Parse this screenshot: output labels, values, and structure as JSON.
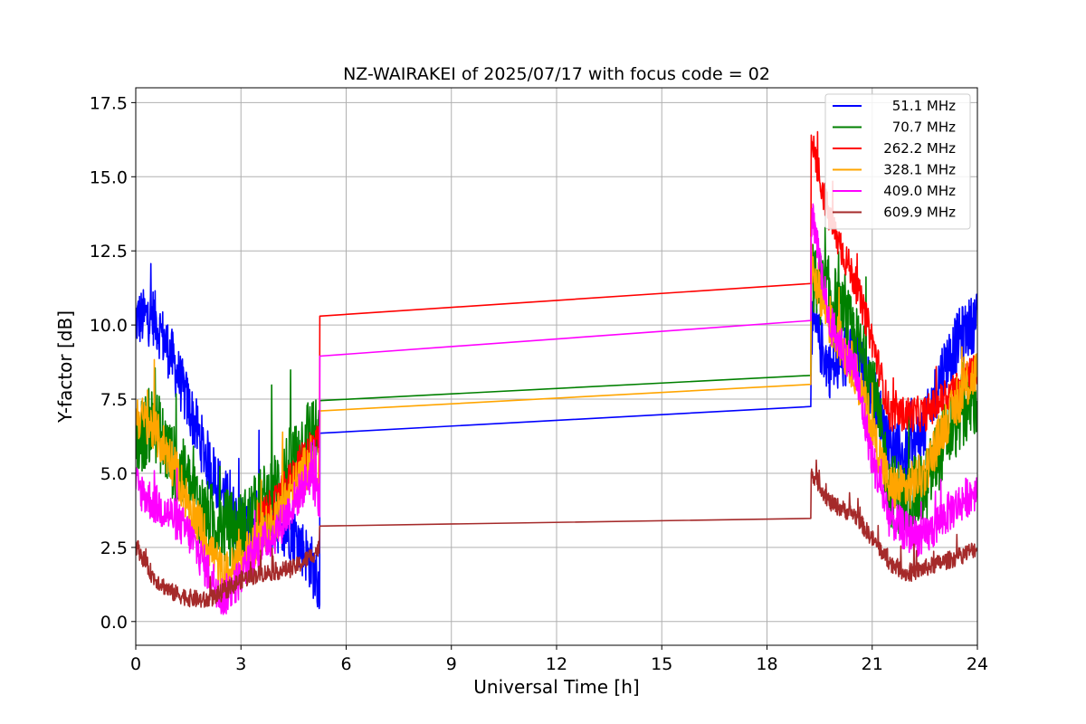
{
  "chart_data": {
    "type": "line",
    "title": "NZ-WAIRAKEI of 2025/07/17 with focus code = 02",
    "xlabel": "Universal Time [h]",
    "ylabel": "Y-factor [dB]",
    "xlim": [
      0,
      24
    ],
    "ylim": [
      -0.8,
      18.0
    ],
    "xticks": [
      0,
      3,
      6,
      9,
      12,
      15,
      18,
      21,
      24
    ],
    "xtick_labels": [
      "0",
      "3",
      "6",
      "9",
      "12",
      "15",
      "18",
      "21",
      "24"
    ],
    "yticks": [
      0.0,
      2.5,
      5.0,
      7.5,
      10.0,
      12.5,
      15.0,
      17.5
    ],
    "ytick_labels": [
      "0.0",
      "2.5",
      "5.0",
      "7.5",
      "10.0",
      "12.5",
      "15.0",
      "17.5"
    ],
    "grid": true,
    "legend_position": "top-right",
    "gap": {
      "start": 5.25,
      "end": 19.25
    },
    "series": [
      {
        "name": "51.1 MHz",
        "color": "#0000ff",
        "amplitude": 1.0,
        "gap_values": [
          6.35,
          7.25
        ],
        "profile": [
          [
            0,
            10.2
          ],
          [
            0.5,
            10.3
          ],
          [
            1.0,
            9.0
          ],
          [
            1.5,
            7.3
          ],
          [
            2.0,
            5.6
          ],
          [
            2.5,
            4.3
          ],
          [
            3.0,
            3.2
          ],
          [
            3.5,
            3.2
          ],
          [
            4.0,
            3.3
          ],
          [
            4.5,
            3.0
          ],
          [
            5.0,
            2.0
          ],
          [
            5.25,
            1.0
          ],
          [
            19.3,
            10.0
          ],
          [
            19.8,
            8.5
          ],
          [
            20.5,
            9.0
          ],
          [
            21.0,
            7.8
          ],
          [
            21.5,
            6.0
          ],
          [
            22.0,
            5.5
          ],
          [
            22.5,
            6.5
          ],
          [
            23.0,
            8.5
          ],
          [
            23.5,
            9.6
          ],
          [
            24.0,
            10.2
          ]
        ]
      },
      {
        "name": "70.7 MHz",
        "color": "#008000",
        "amplitude": 1.3,
        "gap_values": [
          7.45,
          8.3
        ],
        "profile": [
          [
            0,
            6.0
          ],
          [
            0.5,
            6.8
          ],
          [
            1.0,
            5.5
          ],
          [
            1.5,
            4.6
          ],
          [
            2.0,
            3.5
          ],
          [
            2.5,
            3.2
          ],
          [
            3.0,
            3.1
          ],
          [
            3.5,
            3.8
          ],
          [
            4.0,
            4.5
          ],
          [
            4.5,
            5.5
          ],
          [
            5.0,
            6.5
          ],
          [
            5.25,
            6.0
          ],
          [
            19.3,
            11.5
          ],
          [
            19.8,
            11.0
          ],
          [
            20.5,
            9.5
          ],
          [
            21.0,
            8.0
          ],
          [
            21.5,
            4.5
          ],
          [
            22.0,
            4.0
          ],
          [
            22.5,
            4.5
          ],
          [
            23.0,
            6.0
          ],
          [
            23.5,
            7.0
          ],
          [
            24.0,
            7.5
          ]
        ]
      },
      {
        "name": "262.2 MHz",
        "color": "#ff0000",
        "amplitude": 0.6,
        "gap_values": [
          10.3,
          11.4
        ],
        "profile": [
          [
            3.5,
            3.5
          ],
          [
            4.0,
            4.0
          ],
          [
            4.5,
            5.0
          ],
          [
            5.0,
            6.0
          ],
          [
            5.25,
            6.0
          ],
          [
            19.3,
            16.0
          ],
          [
            19.8,
            13.5
          ],
          [
            20.5,
            11.5
          ],
          [
            21.0,
            9.5
          ],
          [
            21.5,
            7.0
          ],
          [
            22.0,
            7.0
          ],
          [
            22.5,
            7.0
          ],
          [
            23.0,
            7.5
          ],
          [
            23.5,
            8.0
          ],
          [
            24.0,
            8.5
          ]
        ]
      },
      {
        "name": "328.1 MHz",
        "color": "#ffa500",
        "amplitude": 0.8,
        "gap_values": [
          7.1,
          8.0
        ],
        "profile": [
          [
            0,
            7.0
          ],
          [
            0.5,
            6.5
          ],
          [
            1.0,
            5.5
          ],
          [
            1.5,
            4.0
          ],
          [
            2.0,
            2.8
          ],
          [
            2.5,
            1.5
          ],
          [
            3.0,
            2.0
          ],
          [
            3.5,
            2.8
          ],
          [
            4.0,
            3.5
          ],
          [
            4.5,
            4.5
          ],
          [
            5.0,
            5.5
          ],
          [
            5.25,
            5.0
          ],
          [
            19.3,
            12.0
          ],
          [
            19.8,
            10.0
          ],
          [
            20.5,
            8.5
          ],
          [
            21.0,
            6.5
          ],
          [
            21.5,
            4.5
          ],
          [
            22.0,
            4.5
          ],
          [
            22.5,
            5.0
          ],
          [
            23.0,
            6.5
          ],
          [
            23.5,
            7.5
          ],
          [
            24.0,
            8.5
          ]
        ]
      },
      {
        "name": "409.0 MHz",
        "color": "#ff00ff",
        "amplitude": 0.7,
        "gap_values": [
          8.95,
          10.15
        ],
        "profile": [
          [
            0,
            4.6
          ],
          [
            0.5,
            4.0
          ],
          [
            1.0,
            3.6
          ],
          [
            1.5,
            3.0
          ],
          [
            2.0,
            1.8
          ],
          [
            2.5,
            0.8
          ],
          [
            3.0,
            1.5
          ],
          [
            3.5,
            2.5
          ],
          [
            4.0,
            3.0
          ],
          [
            4.5,
            4.0
          ],
          [
            5.0,
            5.0
          ],
          [
            5.25,
            4.0
          ],
          [
            19.3,
            13.5
          ],
          [
            19.8,
            10.0
          ],
          [
            20.5,
            8.5
          ],
          [
            21.0,
            5.5
          ],
          [
            21.5,
            3.5
          ],
          [
            22.0,
            3.0
          ],
          [
            22.5,
            2.8
          ],
          [
            23.0,
            3.5
          ],
          [
            23.5,
            4.0
          ],
          [
            24.0,
            4.5
          ]
        ]
      },
      {
        "name": "609.9 MHz",
        "color": "#a52a2a",
        "amplitude": 0.3,
        "gap_values": [
          3.22,
          3.48
        ],
        "profile": [
          [
            0,
            2.6
          ],
          [
            0.5,
            1.5
          ],
          [
            1.0,
            1.0
          ],
          [
            1.5,
            0.8
          ],
          [
            2.0,
            0.7
          ],
          [
            2.5,
            1.0
          ],
          [
            3.0,
            1.4
          ],
          [
            3.5,
            1.6
          ],
          [
            4.0,
            1.7
          ],
          [
            4.5,
            1.8
          ],
          [
            5.0,
            2.2
          ],
          [
            5.25,
            2.5
          ],
          [
            19.3,
            5.0
          ],
          [
            19.8,
            4.0
          ],
          [
            20.5,
            3.6
          ],
          [
            21.0,
            2.8
          ],
          [
            21.5,
            2.0
          ],
          [
            22.0,
            1.6
          ],
          [
            22.5,
            1.8
          ],
          [
            23.0,
            2.0
          ],
          [
            23.5,
            2.2
          ],
          [
            24.0,
            2.5
          ]
        ]
      }
    ]
  }
}
